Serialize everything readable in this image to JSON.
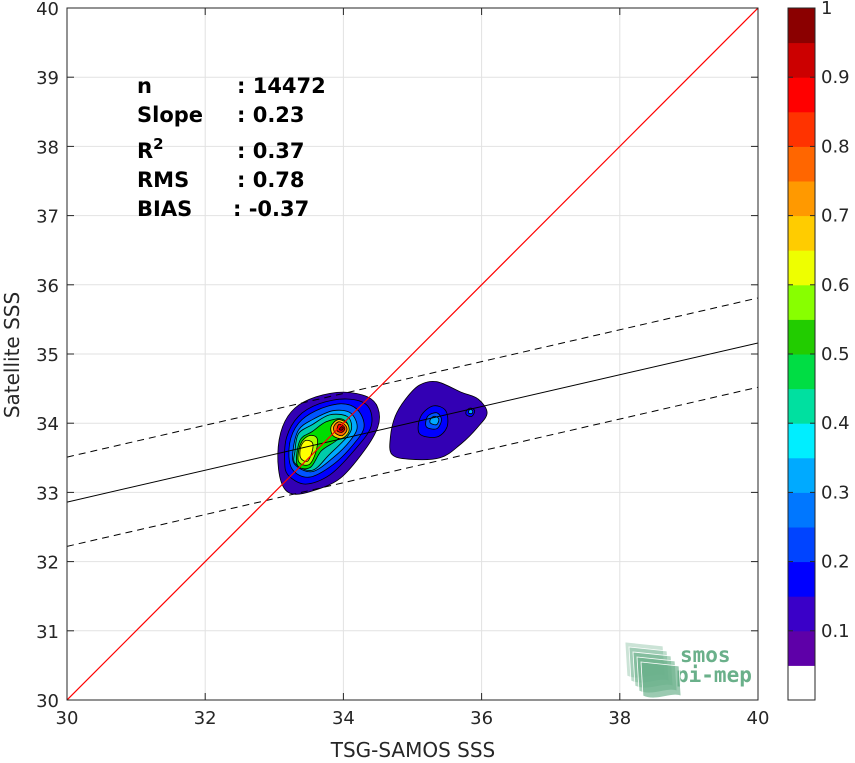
{
  "chart_data": {
    "type": "heatmap",
    "subtype": "density-contour-scatter",
    "xlabel": "TSG-SAMOS SSS",
    "ylabel": "Satellite SSS",
    "xlim": [
      30,
      40
    ],
    "ylim": [
      30,
      40
    ],
    "xticks": [
      "30",
      "32",
      "34",
      "36",
      "38",
      "40"
    ],
    "yticks": [
      "30",
      "31",
      "32",
      "33",
      "34",
      "35",
      "36",
      "37",
      "38",
      "39",
      "40"
    ],
    "grid": true,
    "stats": [
      {
        "label": "n",
        "value": ": 14472"
      },
      {
        "label": "Slope",
        "value": ": 0.23"
      },
      {
        "label": "R",
        "sup": "2",
        "value": ": 0.37"
      },
      {
        "label": "RMS",
        "value": ": 0.78"
      },
      {
        "label": "BIAS",
        "value": ": -0.37"
      }
    ],
    "identity_line": {
      "x": [
        30,
        40
      ],
      "y": [
        30,
        40
      ],
      "color": "#ff0000"
    },
    "regression_line": {
      "x": [
        30,
        40
      ],
      "y": [
        32.86,
        35.16
      ],
      "color": "#000000"
    },
    "upper_bound_line": {
      "x": [
        30,
        40
      ],
      "y": [
        33.51,
        35.81
      ],
      "style": "dashed"
    },
    "lower_bound_line": {
      "x": [
        30,
        40
      ],
      "y": [
        32.22,
        34.52
      ],
      "style": "dashed"
    },
    "density_clusters": [
      {
        "name": "",
        "levels": [
          {
            "value": 0.1,
            "color": "#3300b4",
            "polygon": [
              [
                33.1,
                33.15
              ],
              [
                33.25,
                32.98
              ],
              [
                33.55,
                33.02
              ],
              [
                33.95,
                33.2
              ],
              [
                34.3,
                33.6
              ],
              [
                34.5,
                33.95
              ],
              [
                34.5,
                34.22
              ],
              [
                34.35,
                34.38
              ],
              [
                34.0,
                34.45
              ],
              [
                33.6,
                34.38
              ],
              [
                33.3,
                34.22
              ],
              [
                33.12,
                33.95
              ],
              [
                33.05,
                33.55
              ]
            ]
          },
          {
            "value": 0.2,
            "color": "#0000ff",
            "polygon": [
              [
                33.2,
                33.25
              ],
              [
                33.45,
                33.12
              ],
              [
                33.8,
                33.25
              ],
              [
                34.15,
                33.6
              ],
              [
                34.4,
                33.95
              ],
              [
                34.35,
                34.25
              ],
              [
                34.05,
                34.35
              ],
              [
                33.65,
                34.28
              ],
              [
                33.35,
                34.1
              ],
              [
                33.18,
                33.8
              ],
              [
                33.15,
                33.45
              ]
            ]
          },
          {
            "value": 0.3,
            "color": "#0055ff",
            "polygon": [
              [
                33.25,
                33.35
              ],
              [
                33.5,
                33.22
              ],
              [
                33.85,
                33.4
              ],
              [
                34.15,
                33.7
              ],
              [
                34.3,
                33.95
              ],
              [
                34.2,
                34.2
              ],
              [
                33.95,
                34.28
              ],
              [
                33.6,
                34.18
              ],
              [
                33.35,
                34.0
              ],
              [
                33.22,
                33.7
              ]
            ]
          },
          {
            "value": 0.4,
            "color": "#00aaff",
            "polygon": [
              [
                33.3,
                33.4
              ],
              [
                33.55,
                33.3
              ],
              [
                33.85,
                33.5
              ],
              [
                34.1,
                33.75
              ],
              [
                34.2,
                33.95
              ],
              [
                34.1,
                34.15
              ],
              [
                33.85,
                34.18
              ],
              [
                33.55,
                34.05
              ],
              [
                33.35,
                33.9
              ],
              [
                33.27,
                33.6
              ]
            ]
          },
          {
            "value": 0.45,
            "color": "#00ccaa",
            "polygon": [
              [
                33.3,
                33.42
              ],
              [
                33.55,
                33.32
              ],
              [
                33.8,
                33.55
              ],
              [
                34.05,
                33.8
              ],
              [
                34.12,
                33.95
              ],
              [
                34.05,
                34.1
              ],
              [
                33.8,
                34.12
              ],
              [
                33.55,
                33.98
              ],
              [
                33.35,
                33.85
              ],
              [
                33.3,
                33.6
              ]
            ]
          },
          {
            "value": 0.5,
            "color": "#00dd00",
            "polygon": [
              [
                33.33,
                33.4
              ],
              [
                33.52,
                33.36
              ],
              [
                33.68,
                33.6
              ],
              [
                33.9,
                33.75
              ],
              [
                34.07,
                33.93
              ],
              [
                33.98,
                34.06
              ],
              [
                33.75,
                34.02
              ],
              [
                33.55,
                33.88
              ],
              [
                33.37,
                33.75
              ]
            ]
          },
          {
            "value": 0.6,
            "color": "#aaff00",
            "polygon": [
              [
                33.35,
                33.45
              ],
              [
                33.5,
                33.4
              ],
              [
                33.6,
                33.58
              ],
              [
                33.62,
                33.78
              ],
              [
                33.5,
                33.82
              ],
              [
                33.38,
                33.7
              ]
            ]
          },
          {
            "value": 0.65,
            "color": "#ffff00",
            "polygon": [
              [
                33.38,
                33.5
              ],
              [
                33.48,
                33.45
              ],
              [
                33.55,
                33.6
              ],
              [
                33.55,
                33.72
              ],
              [
                33.45,
                33.75
              ],
              [
                33.38,
                33.65
              ]
            ]
          },
          {
            "value": 0.6,
            "color": "#ffcc00",
            "polygon": [
              [
                33.85,
                33.82
              ],
              [
                33.98,
                33.78
              ],
              [
                34.08,
                33.88
              ],
              [
                34.05,
                34.0
              ],
              [
                33.92,
                34.05
              ],
              [
                33.82,
                33.95
              ]
            ]
          },
          {
            "value": 0.8,
            "color": "#ff6600",
            "polygon": [
              [
                33.88,
                33.86
              ],
              [
                33.98,
                33.82
              ],
              [
                34.05,
                33.9
              ],
              [
                34.02,
                33.98
              ],
              [
                33.93,
                34.02
              ],
              [
                33.86,
                33.95
              ]
            ]
          },
          {
            "value": 0.9,
            "color": "#ff0000",
            "polygon": [
              [
                33.91,
                33.89
              ],
              [
                33.98,
                33.87
              ],
              [
                34.02,
                33.92
              ],
              [
                33.99,
                33.97
              ],
              [
                33.93,
                33.98
              ]
            ]
          },
          {
            "value": 1.0,
            "color": "#8b0000",
            "polygon": [
              [
                33.94,
                33.91
              ],
              [
                33.98,
                33.9
              ],
              [
                34.0,
                33.93
              ],
              [
                33.97,
                33.95
              ]
            ]
          }
        ]
      },
      {
        "name": "",
        "levels": [
          {
            "value": 0.1,
            "color": "#3300b4",
            "polygon": [
              [
                34.7,
                33.55
              ],
              [
                34.95,
                33.48
              ],
              [
                35.4,
                33.5
              ],
              [
                35.7,
                33.7
              ],
              [
                35.95,
                33.95
              ],
              [
                36.08,
                34.15
              ],
              [
                35.95,
                34.35
              ],
              [
                35.7,
                34.45
              ],
              [
                35.35,
                34.6
              ],
              [
                35.1,
                34.55
              ],
              [
                34.9,
                34.35
              ],
              [
                34.75,
                34.1
              ],
              [
                34.68,
                33.8
              ]
            ]
          },
          {
            "value": 0.2,
            "color": "#0000ff",
            "polygon": [
              [
                35.1,
                33.85
              ],
              [
                35.35,
                33.8
              ],
              [
                35.5,
                33.95
              ],
              [
                35.48,
                34.18
              ],
              [
                35.3,
                34.25
              ],
              [
                35.12,
                34.1
              ]
            ]
          },
          {
            "value": 0.3,
            "color": "#0055ff",
            "polygon": [
              [
                35.2,
                33.95
              ],
              [
                35.35,
                33.92
              ],
              [
                35.42,
                34.05
              ],
              [
                35.35,
                34.15
              ],
              [
                35.22,
                34.1
              ]
            ]
          },
          {
            "value": 0.4,
            "color": "#00aaff",
            "polygon": [
              [
                35.26,
                34.0
              ],
              [
                35.35,
                33.98
              ],
              [
                35.38,
                34.06
              ],
              [
                35.32,
                34.1
              ],
              [
                35.26,
                34.06
              ]
            ]
          },
          {
            "value": 0.2,
            "color": "#0000ff",
            "polygon": [
              [
                35.78,
                34.12
              ],
              [
                35.86,
                34.1
              ],
              [
                35.9,
                34.18
              ],
              [
                35.84,
                34.22
              ],
              [
                35.78,
                34.18
              ]
            ]
          },
          {
            "value": 0.3,
            "color": "#00aaff",
            "polygon": [
              [
                35.81,
                34.15
              ],
              [
                35.86,
                34.14
              ],
              [
                35.87,
                34.18
              ],
              [
                35.83,
                34.2
              ]
            ]
          }
        ]
      }
    ],
    "colorbar": {
      "range": [
        0,
        1
      ],
      "ticks": [
        "0.1",
        "0.2",
        "0.3",
        "0.4",
        "0.5",
        "0.6",
        "0.7",
        "0.8",
        "0.9",
        "1"
      ],
      "colors": [
        "#ffffff",
        "#5e00a8",
        "#3a00c8",
        "#0000ff",
        "#0044ff",
        "#0077ff",
        "#00aaff",
        "#00eeff",
        "#00e0a0",
        "#00dd44",
        "#22cc00",
        "#88ff00",
        "#eeff00",
        "#ffcc00",
        "#ff9900",
        "#ff6600",
        "#ff3300",
        "#ff0000",
        "#cc0000",
        "#8b0000"
      ]
    }
  },
  "logo": {
    "line1": "smos",
    "line2": "pi-mep",
    "color": "#6ab08a"
  }
}
